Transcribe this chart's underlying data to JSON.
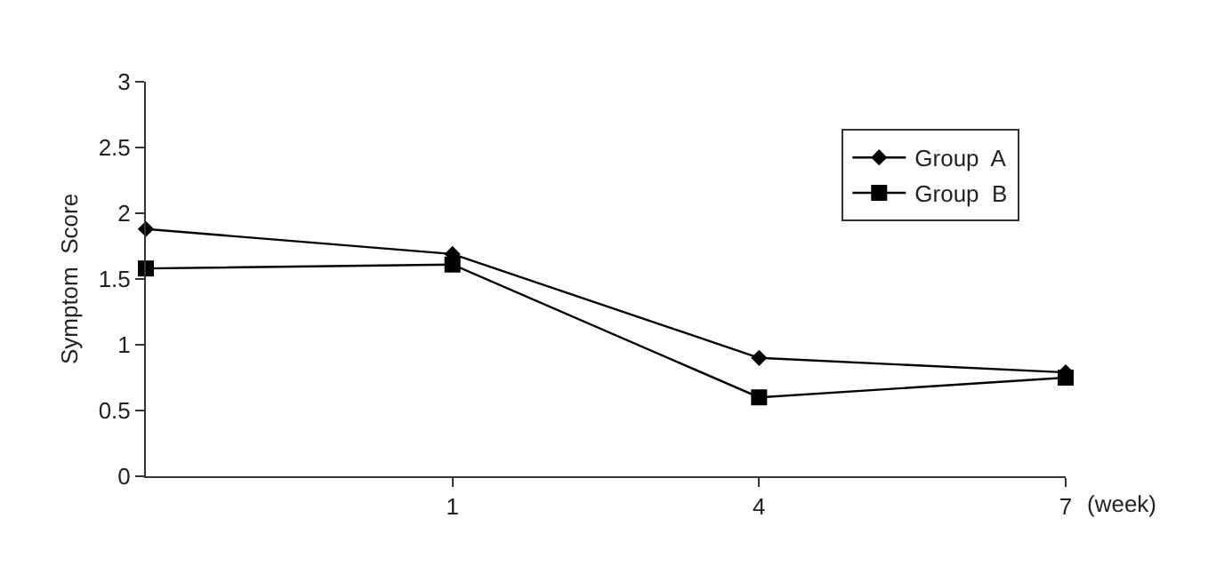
{
  "chart_data": {
    "type": "line",
    "ylabel": "Symptom  Score",
    "xlabel": "(week)",
    "categories": [
      null,
      "1",
      "4",
      "7"
    ],
    "series": [
      {
        "name": "Group  A",
        "color": "#000000",
        "marker": "diamond",
        "values": [
          1.88,
          1.69,
          0.9,
          0.79
        ]
      },
      {
        "name": "Group  B",
        "color": "#000000",
        "marker": "square",
        "values": [
          1.58,
          1.61,
          0.6,
          0.75
        ]
      }
    ],
    "ylim": [
      0,
      3
    ],
    "yticks": [
      0,
      0.5,
      1,
      1.5,
      2,
      2.5,
      3
    ],
    "legend": "top right",
    "line_style": "solid"
  }
}
